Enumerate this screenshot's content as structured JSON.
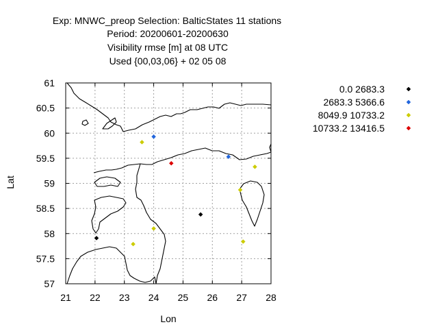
{
  "chart_data": {
    "type": "scatter",
    "title_lines": [
      "Exp: MNWC_preop   Selection: BalticStates     11 stations",
      "Period: 20200601-20200630",
      "Visibility rmse [m] at  08 UTC",
      "Used {00,03,06} + 02 05 08"
    ],
    "xlabel": "Lon",
    "ylabel": "Lat",
    "xlim": [
      21,
      28
    ],
    "ylim": [
      57,
      61
    ],
    "xticks": [
      "21",
      "22",
      "23",
      "24",
      "25",
      "26",
      "27",
      "28"
    ],
    "yticks": [
      "57",
      "57.5",
      "58",
      "58.5",
      "59",
      "59.5",
      "60",
      "60.5",
      "61"
    ],
    "grid": true,
    "legend_position": "right",
    "series": [
      {
        "name": "0.0 2683.3",
        "color": "#000000",
        "points": [
          [
            22.05,
            57.91
          ],
          [
            25.6,
            58.38
          ]
        ]
      },
      {
        "name": "2683.3 5366.6",
        "color": "#2266dd",
        "points": [
          [
            24.0,
            59.93
          ],
          [
            26.55,
            59.53
          ]
        ]
      },
      {
        "name": "8049.9 10733.2",
        "color": "#cccc00",
        "points": [
          [
            23.6,
            59.82
          ],
          [
            27.45,
            59.33
          ],
          [
            26.95,
            58.87
          ],
          [
            24.0,
            58.1
          ],
          [
            23.3,
            57.79
          ],
          [
            27.05,
            57.84
          ]
        ]
      },
      {
        "name": "10733.2 13416.5",
        "color": "#dd0000",
        "points": [
          [
            24.6,
            59.4
          ]
        ]
      }
    ]
  }
}
